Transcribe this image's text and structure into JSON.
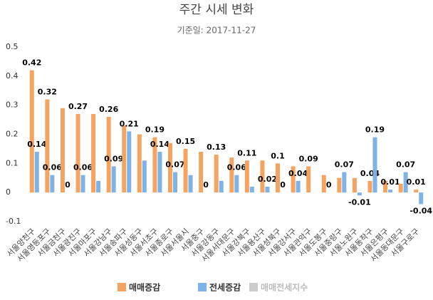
{
  "chart_data": {
    "type": "bar",
    "title": "주간 시세 변화",
    "subtitle": "기준일: 2017-11-27",
    "categories": [
      "서울양천구",
      "서울영등포구",
      "서울금천구",
      "서울광진구",
      "서울마포구",
      "서울강남구",
      "서울송파구",
      "서울성동구",
      "서울서초구",
      "서울종로구",
      "서울서울시",
      "서울중구",
      "서울강동구",
      "서울서대문구",
      "서울강북구",
      "서울용산구",
      "서울성북구",
      "서울강서구",
      "서울관악구",
      "서울도봉구",
      "서울중랑구",
      "서울노원구",
      "서울동작구",
      "서울은평구",
      "서울동대문구",
      "서울구로구"
    ],
    "series": [
      {
        "name": "매매증감",
        "color": "#f4a460",
        "values": [
          0.42,
          0.32,
          0.29,
          0.27,
          0.27,
          0.26,
          0.23,
          0.2,
          0.19,
          0.17,
          0.15,
          0.14,
          0.13,
          0.12,
          0.11,
          0.11,
          0.1,
          0.09,
          0.09,
          0.06,
          0.05,
          0.05,
          0.04,
          0.04,
          0.03,
          0.01
        ],
        "value_labels": [
          "0.42",
          "0.32",
          null,
          "0.27",
          null,
          "0.26",
          null,
          null,
          "0.19",
          null,
          "0.15",
          null,
          "0.13",
          null,
          "0.11",
          null,
          "0.1",
          null,
          "0.09",
          null,
          null,
          null,
          "0.04",
          null,
          null,
          "0.01"
        ]
      },
      {
        "name": "전세증감",
        "color": "#7fb2e5",
        "values": [
          0.14,
          0.06,
          0,
          0.06,
          0.04,
          0.09,
          0.21,
          0.11,
          0.14,
          0.07,
          0.06,
          0,
          0.04,
          0.06,
          0.02,
          0.02,
          0,
          0.04,
          0,
          0,
          0.07,
          -0.01,
          0.19,
          0.01,
          0.07,
          -0.04
        ],
        "value_labels": [
          "0.14",
          "0.06",
          "0",
          "0.06",
          null,
          "0.09",
          "0.21",
          null,
          "0.14",
          "0.07",
          null,
          "0",
          null,
          "0.06",
          null,
          "0.02",
          "0",
          "0.04",
          null,
          "0",
          "0.07",
          "-0.01",
          "0.19",
          "0.01",
          "0.07",
          "-0.04"
        ]
      },
      {
        "name": "매매전세지수",
        "color": "#cccccc",
        "values": [
          null,
          null,
          null,
          null,
          null,
          null,
          null,
          null,
          null,
          null,
          null,
          null,
          null,
          null,
          null,
          null,
          null,
          null,
          null,
          null,
          null,
          null,
          null,
          null,
          null,
          null
        ]
      }
    ],
    "ylim": [
      -0.1,
      0.5
    ],
    "yticks": [
      -0.1,
      0,
      0.1,
      0.2,
      0.3,
      0.4,
      0.5
    ],
    "grid": false,
    "legend": "bottom"
  }
}
